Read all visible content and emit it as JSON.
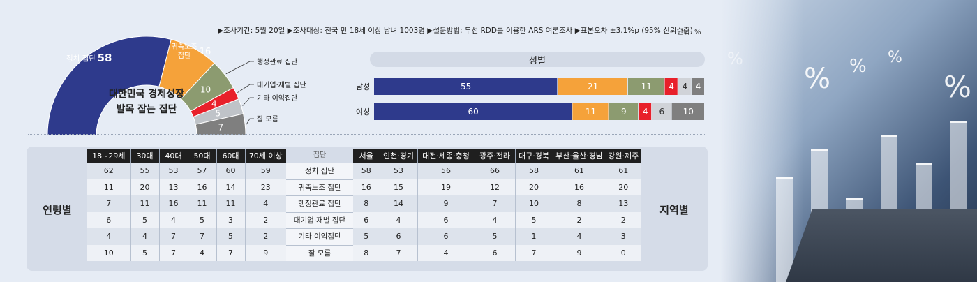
{
  "header": {
    "notes": "▶조사기간: 5월 20일 ▶조사대상: 전국 만 18세 이상 남녀 1003명 ▶설문방법: 무선 RDD를 이용한 ARS 여론조사 ▶표본오차 ±3.1%p (95% 신뢰수준)",
    "unit": "단위: %"
  },
  "chart_data": [
    {
      "type": "pie",
      "title": "대한민국 경제성장 발목 잡는 집단",
      "title_line1": "대한민국 경제성장",
      "title_line2": "발목 잡는 집단",
      "slices": [
        {
          "label": "정치 집단",
          "value": 58,
          "color": "#2e3a8c"
        },
        {
          "label": "귀족노조 집단",
          "label_line1": "귀족노조",
          "label_line2": "집단",
          "value": 16,
          "color": "#f5a23a"
        },
        {
          "label": "행정관료 집단",
          "value": 10,
          "color": "#8c9b70"
        },
        {
          "label": "대기업·재벌 집단",
          "value": 4,
          "color": "#e8202a"
        },
        {
          "label": "기타 이익집단",
          "value": 5,
          "color": "#bfc3c8"
        },
        {
          "label": "잘 모름",
          "value": 7,
          "color": "#7f7f7f"
        }
      ]
    },
    {
      "type": "bar",
      "title": "성별",
      "categories": [
        "남성",
        "여성"
      ],
      "stacked": true,
      "series": [
        {
          "values": [
            55,
            60
          ],
          "color": "#2e3a8c",
          "text_color": "#ffffff"
        },
        {
          "values": [
            21,
            11
          ],
          "color": "#f5a23a",
          "text_color": "#ffffff"
        },
        {
          "values": [
            11,
            9
          ],
          "color": "#8c9b70",
          "text_color": "#ffffff"
        },
        {
          "values": [
            4,
            4
          ],
          "color": "#e8202a",
          "text_color": "#ffffff"
        },
        {
          "values": [
            4,
            6
          ],
          "color": "#d0d3d8",
          "text_color": "#333333"
        },
        {
          "values": [
            4,
            10
          ],
          "color": "#7f7f7f",
          "text_color": "#ffffff"
        }
      ]
    },
    {
      "type": "table",
      "title": "연령별",
      "columns": [
        "18~29세",
        "30대",
        "40대",
        "50대",
        "60대",
        "70세 이상"
      ],
      "rows": [
        [
          "62",
          "55",
          "53",
          "57",
          "60",
          "59"
        ],
        [
          "11",
          "20",
          "13",
          "16",
          "14",
          "23"
        ],
        [
          "7",
          "11",
          "16",
          "11",
          "11",
          "4"
        ],
        [
          "6",
          "5",
          "4",
          "5",
          "3",
          "2"
        ],
        [
          "4",
          "4",
          "7",
          "7",
          "5",
          "2"
        ],
        [
          "10",
          "5",
          "7",
          "4",
          "7",
          "9"
        ]
      ]
    },
    {
      "type": "table",
      "title": "지역별",
      "columns": [
        "서울",
        "인천·경기",
        "대전·세종·충청",
        "광주·전라",
        "대구·경북",
        "부산·울산·경남",
        "강원·제주"
      ],
      "rows": [
        [
          "58",
          "53",
          "56",
          "66",
          "58",
          "61",
          "61"
        ],
        [
          "16",
          "15",
          "19",
          "12",
          "20",
          "16",
          "20"
        ],
        [
          "8",
          "14",
          "9",
          "7",
          "10",
          "8",
          "13"
        ],
        [
          "6",
          "4",
          "6",
          "4",
          "5",
          "2",
          "2"
        ],
        [
          "5",
          "6",
          "6",
          "5",
          "1",
          "4",
          "3"
        ],
        [
          "8",
          "7",
          "4",
          "6",
          "7",
          "9",
          "0"
        ]
      ]
    }
  ],
  "group_column": {
    "header": "집단",
    "items": [
      "정치 집단",
      "귀족노조 집단",
      "행정관료 집단",
      "대기업·재벌 집단",
      "기타 이익집단",
      "잘 모름"
    ]
  },
  "photo": {
    "icon": "percent-chart-photo",
    "symbols": [
      "%",
      "%",
      "%",
      "%",
      "%"
    ]
  }
}
